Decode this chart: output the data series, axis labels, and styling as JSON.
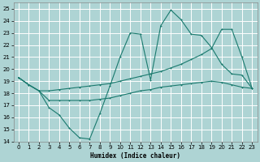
{
  "xlabel": "Humidex (Indice chaleur)",
  "xlim": [
    -0.5,
    23.5
  ],
  "ylim": [
    14,
    25.5
  ],
  "yticks": [
    14,
    15,
    16,
    17,
    18,
    19,
    20,
    21,
    22,
    23,
    24,
    25
  ],
  "xticks": [
    0,
    1,
    2,
    3,
    4,
    5,
    6,
    7,
    8,
    9,
    10,
    11,
    12,
    13,
    14,
    15,
    16,
    17,
    18,
    19,
    20,
    21,
    22,
    23
  ],
  "bg_color": "#aed4d4",
  "grid_color": "#ffffff",
  "line_color": "#1a7a6e",
  "series": {
    "line1": {
      "x": [
        0,
        1,
        2,
        3,
        4,
        5,
        6,
        7,
        8,
        9,
        10,
        11,
        12,
        13,
        14,
        15,
        16,
        17,
        18,
        19,
        20,
        21,
        22,
        23
      ],
      "y": [
        19.3,
        18.7,
        18.2,
        16.8,
        16.2,
        15.1,
        14.3,
        14.2,
        16.3,
        18.6,
        21.0,
        23.0,
        22.9,
        19.1,
        23.6,
        24.9,
        24.1,
        22.9,
        22.8,
        21.8,
        20.4,
        19.6,
        19.5,
        18.4
      ]
    },
    "line2": {
      "x": [
        0,
        1,
        2,
        3,
        4,
        5,
        6,
        7,
        8,
        9,
        10,
        11,
        12,
        13,
        14,
        15,
        16,
        17,
        18,
        19,
        20,
        21,
        22,
        23
      ],
      "y": [
        19.3,
        18.7,
        18.2,
        18.2,
        18.3,
        18.4,
        18.5,
        18.6,
        18.7,
        18.8,
        19.0,
        19.2,
        19.4,
        19.6,
        19.8,
        20.1,
        20.4,
        20.8,
        21.2,
        21.7,
        23.3,
        23.3,
        21.0,
        18.4
      ]
    },
    "line3": {
      "x": [
        0,
        1,
        2,
        3,
        4,
        5,
        6,
        7,
        8,
        9,
        10,
        11,
        12,
        13,
        14,
        15,
        16,
        17,
        18,
        19,
        20,
        21,
        22,
        23
      ],
      "y": [
        19.3,
        18.7,
        18.2,
        17.4,
        17.4,
        17.4,
        17.4,
        17.4,
        17.5,
        17.6,
        17.8,
        18.0,
        18.2,
        18.3,
        18.5,
        18.6,
        18.7,
        18.8,
        18.9,
        19.0,
        18.9,
        18.7,
        18.5,
        18.4
      ]
    }
  }
}
